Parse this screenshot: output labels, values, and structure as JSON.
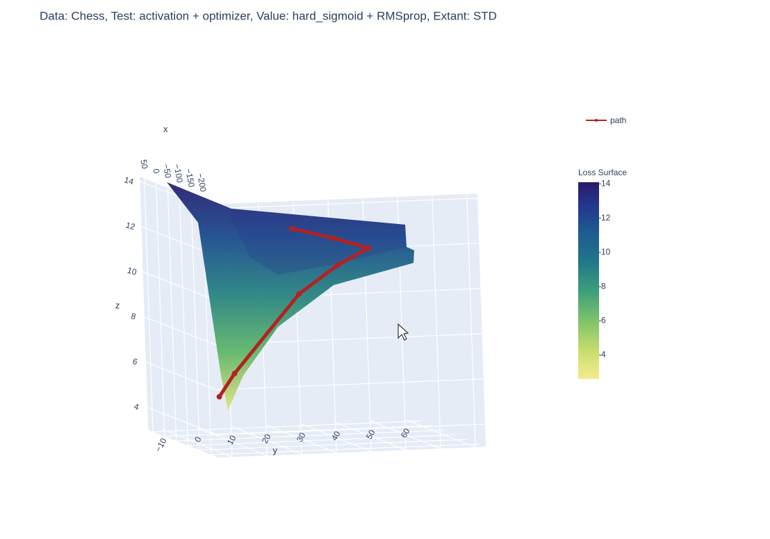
{
  "chart_data": {
    "type": "surface3d",
    "title": "Data: Chess, Test: activation + optimizer, Value: hard_sigmoid + RMSprop, Extant: STD",
    "xaxis_title": "x",
    "yaxis_title": "y",
    "zaxis_title": "z",
    "xlim": [
      -230,
      70
    ],
    "ylim": [
      -14,
      63
    ],
    "zlim": [
      3,
      14.2
    ],
    "xticks": [
      50,
      0,
      {
        "value": -50,
        "label": "−50"
      },
      {
        "value": -100,
        "label": "−100"
      },
      {
        "value": -150,
        "label": "−150"
      },
      {
        "value": -200,
        "label": "−200"
      }
    ],
    "yticks": [
      {
        "value": -10,
        "label": "−10"
      },
      0,
      10,
      20,
      30,
      40,
      50,
      60
    ],
    "zticks": [
      4,
      6,
      8,
      10,
      12,
      14
    ],
    "colorbar": {
      "title": "Loss Surface",
      "clim": [
        2.6,
        14.1
      ],
      "ticks": [
        4,
        6,
        8,
        10,
        12,
        14
      ],
      "colorscale": [
        [
          0,
          "#f6eb8e"
        ],
        [
          0.15,
          "#c4dd6c"
        ],
        [
          0.3,
          "#7cc26a"
        ],
        [
          0.45,
          "#3c9e7a"
        ],
        [
          0.6,
          "#21768a"
        ],
        [
          0.75,
          "#1d5a90"
        ],
        [
          0.88,
          "#25378f"
        ],
        [
          1,
          "#281c68"
        ]
      ]
    },
    "series": [
      {
        "name": "path",
        "color": "#b22222",
        "x": [
          -100,
          -100,
          -100,
          -100,
          -100,
          -100,
          -100
        ],
        "y": [
          -4.5,
          0.1,
          19.4,
          30.7,
          39.8,
          29.9,
          18
        ],
        "z": [
          5.1,
          6.1,
          9.5,
          10.7,
          11.4,
          11.9,
          12.4
        ]
      }
    ]
  }
}
